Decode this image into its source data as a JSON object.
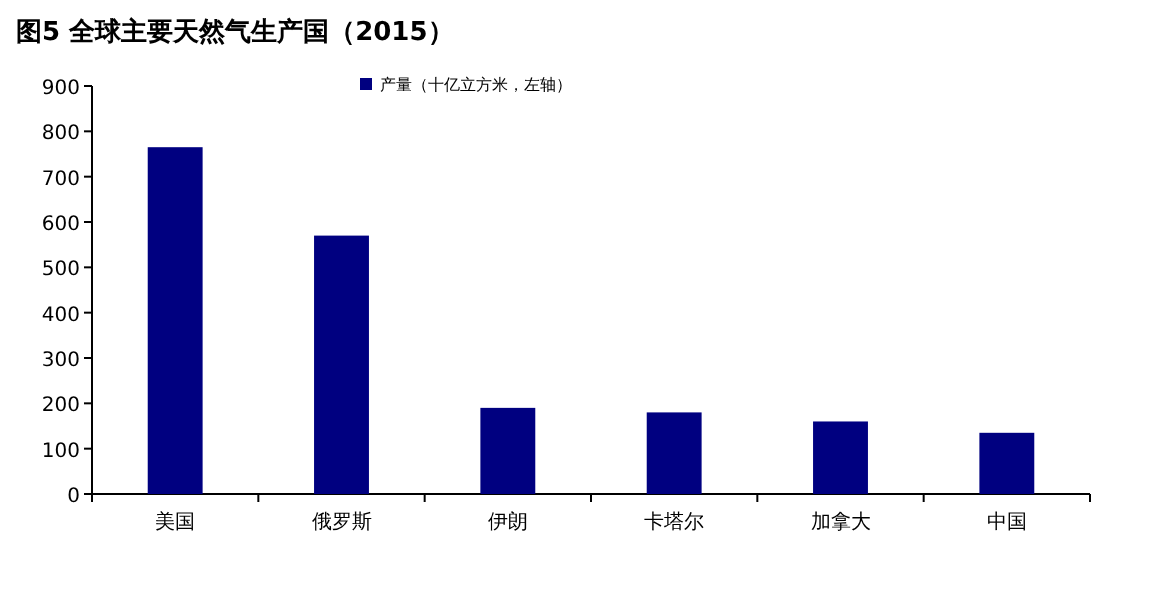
{
  "chart_data": {
    "type": "bar",
    "title": "图5  全球主要天然气生产国（2015）",
    "categories": [
      "美国",
      "俄罗斯",
      "伊朗",
      "卡塔尔",
      "加拿大",
      "中国"
    ],
    "series": [
      {
        "name": "产量（十亿立方米，左轴）",
        "color": "#000080",
        "values": [
          765,
          570,
          190,
          180,
          160,
          135
        ]
      }
    ],
    "ylim": [
      0,
      900
    ],
    "yticks": [
      0,
      100,
      200,
      300,
      400,
      500,
      600,
      700,
      800,
      900
    ],
    "legend": "top",
    "grid": false
  }
}
